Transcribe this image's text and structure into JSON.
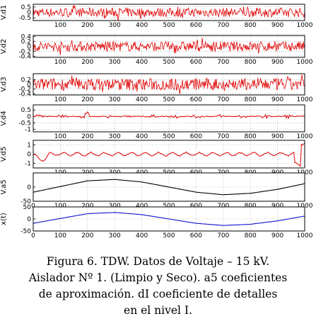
{
  "chart_data": [
    {
      "type": "line",
      "ylabel": "V.d1",
      "xlim": [
        0,
        1000
      ],
      "ylim": [
        -0.75,
        0.75
      ],
      "yticks": [
        "0.5",
        "0",
        "-0.5"
      ],
      "xticks": [
        "100",
        "200",
        "300",
        "400",
        "500",
        "600",
        "700",
        "800",
        "900",
        "1000"
      ],
      "grid": true,
      "series": [
        {
          "style": "noise",
          "amplitude": 0.42,
          "color": "#e00000"
        }
      ]
    },
    {
      "type": "line",
      "ylabel": "V.d2",
      "xlim": [
        0,
        1000
      ],
      "ylim": [
        -0.45,
        0.45
      ],
      "yticks": [
        "0.4",
        "0.2",
        "0",
        "-0.2",
        "-0.4"
      ],
      "xticks": [
        "100",
        "200",
        "300",
        "400",
        "500",
        "600",
        "700",
        "800",
        "900",
        "1000"
      ],
      "grid": true,
      "series": [
        {
          "style": "noise",
          "amplitude": 0.2,
          "color": "#e00000"
        }
      ]
    },
    {
      "type": "line",
      "ylabel": "V.d3",
      "xlim": [
        0,
        1000
      ],
      "ylim": [
        -0.45,
        0.45
      ],
      "yticks": [
        "0.2",
        "0",
        "-0.2",
        "-0.4"
      ],
      "xticks": [
        "100",
        "200",
        "300",
        "400",
        "500",
        "600",
        "700",
        "800",
        "900",
        "1000"
      ],
      "grid": true,
      "series": [
        {
          "style": "noise",
          "amplitude": 0.26,
          "color": "#e00000"
        }
      ]
    },
    {
      "type": "line",
      "ylabel": "V.d4",
      "xlim": [
        0,
        1000
      ],
      "ylim": [
        -1.2,
        0.9
      ],
      "yticks": [
        "0.5",
        "0",
        "-0.5",
        "-1"
      ],
      "xticks": [
        "100",
        "200",
        "300",
        "400",
        "500",
        "600",
        "700",
        "800",
        "900",
        "1000"
      ],
      "grid": true,
      "series": [
        {
          "style": "bursts",
          "amplitude": 0.12,
          "color": "#e00000"
        }
      ]
    },
    {
      "type": "line",
      "ylabel": "V.d5",
      "xlim": [
        0,
        1000
      ],
      "ylim": [
        -1.5,
        1.5
      ],
      "yticks": [
        "1",
        "0",
        "-1"
      ],
      "xticks": [
        "100",
        "200",
        "300",
        "400",
        "500",
        "600",
        "700",
        "800",
        "900",
        "1000"
      ],
      "grid": true,
      "series": [
        {
          "style": "wave",
          "amplitude": 0.25,
          "color": "#e00000"
        }
      ]
    },
    {
      "type": "line",
      "ylabel": "V.a5",
      "xlim": [
        0,
        1000
      ],
      "ylim": [
        -50,
        50
      ],
      "yticks": [
        "0",
        "-50"
      ],
      "xticks": [
        "0",
        "100",
        "200",
        "300",
        "400",
        "500",
        "600",
        "700",
        "800",
        "900",
        "1000"
      ],
      "grid": true,
      "series": [
        {
          "style": "sine",
          "color": "#000000",
          "x": [
            0,
            100,
            200,
            300,
            400,
            500,
            600,
            700,
            800,
            900,
            1000
          ],
          "y": [
            -18,
            2,
            22,
            27,
            18,
            0,
            -18,
            -27,
            -22,
            -8,
            12
          ]
        }
      ]
    },
    {
      "type": "line",
      "ylabel": "x(t)",
      "xlim": [
        0,
        1000
      ],
      "ylim": [
        -50,
        50
      ],
      "yticks": [
        "50",
        "0",
        "-50"
      ],
      "xticks": [
        "0",
        "100",
        "200",
        "300",
        "400",
        "500",
        "600",
        "700",
        "800",
        "900",
        "1000"
      ],
      "grid": true,
      "series": [
        {
          "style": "sine",
          "color": "#1010d0",
          "x": [
            0,
            100,
            200,
            300,
            400,
            500,
            600,
            700,
            800,
            900,
            1000
          ],
          "y": [
            -18,
            2,
            22,
            27,
            18,
            0,
            -18,
            -27,
            -22,
            -8,
            12
          ]
        }
      ]
    }
  ],
  "caption": {
    "line1": "Figura 6. TDW. Datos de Voltaje – 15 kV.",
    "line2": "Aislador Nº 1. (Limpio y Seco). a5 coeficientes",
    "line3": "de aproximación. dI coeficiente de detalles",
    "line4": "en el nivel I."
  }
}
